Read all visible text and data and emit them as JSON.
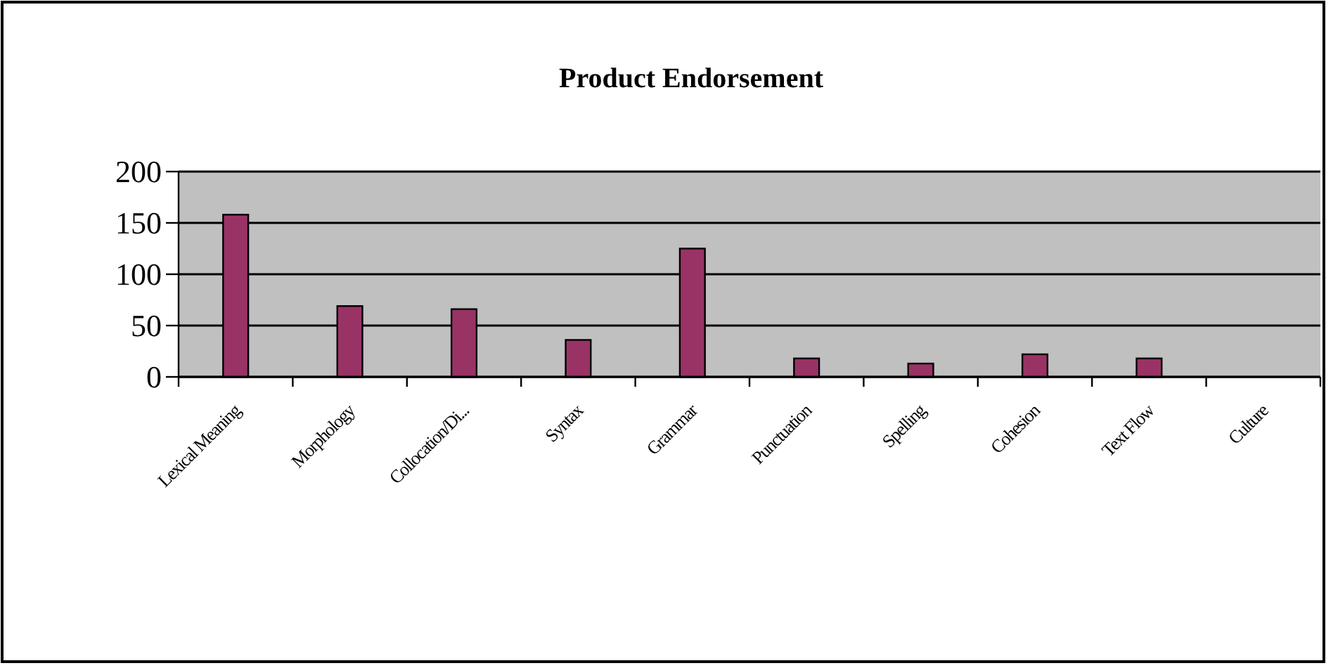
{
  "chart_data": {
    "type": "bar",
    "title": "Product Endorsement",
    "categories": [
      "Lexical Meaning",
      "Morphology",
      "Collocation/Di...",
      "Syntax",
      "Grammar",
      "Punctuation",
      "Spelling",
      "Cohesion",
      "Text Flow",
      "Culture"
    ],
    "values": [
      158,
      69,
      66,
      36,
      125,
      18,
      13,
      22,
      18,
      null
    ],
    "color": "#993366",
    "ylim": [
      0,
      200
    ],
    "yticks": [
      0,
      50,
      100,
      150,
      200
    ],
    "grid": "y"
  }
}
